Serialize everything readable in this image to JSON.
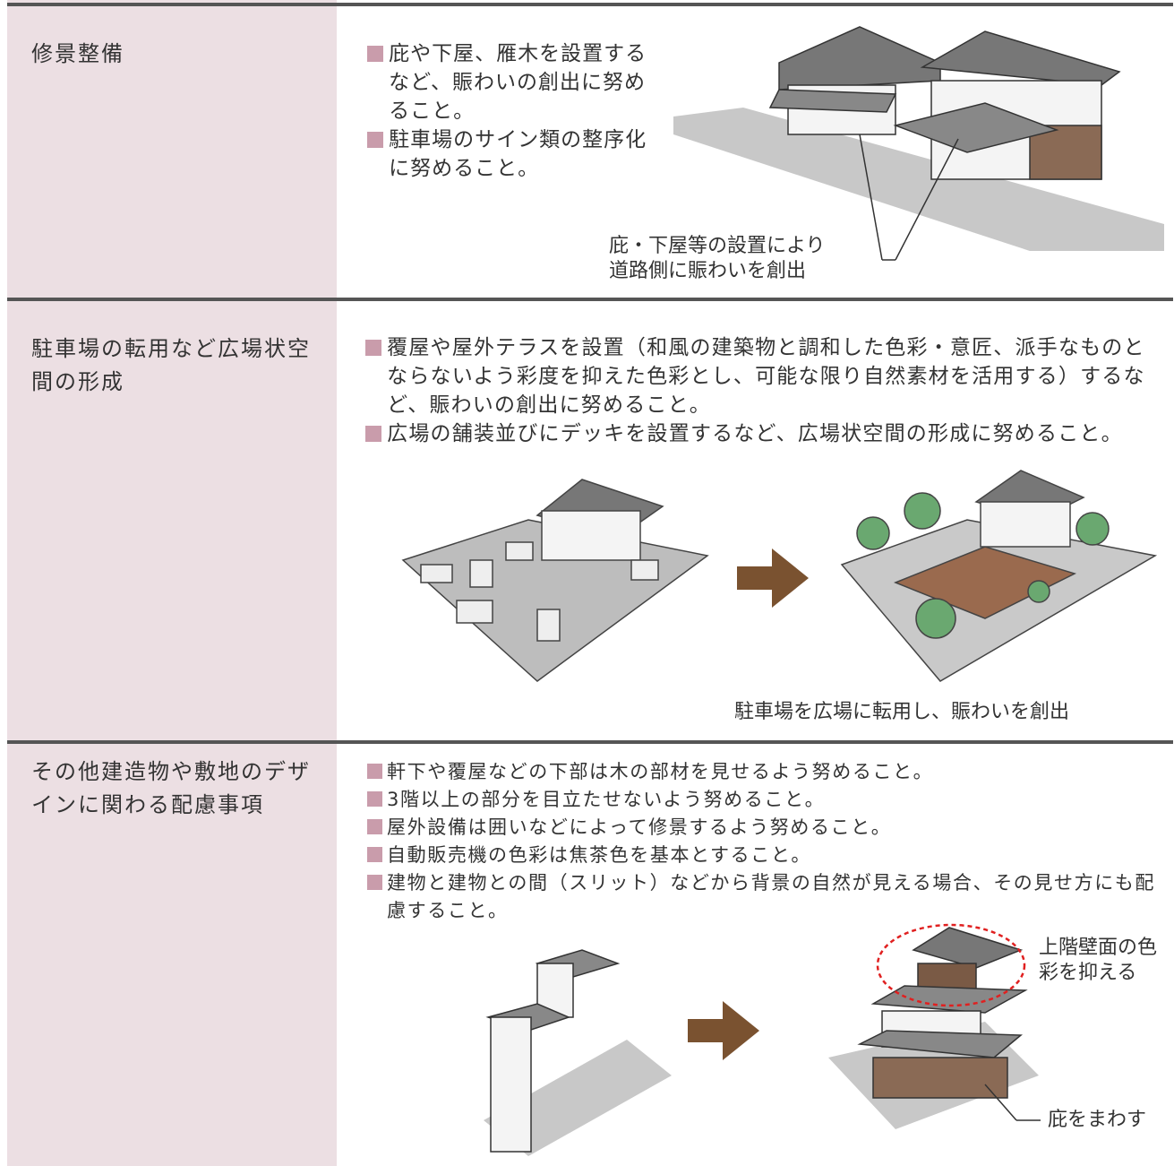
{
  "rows": [
    {
      "title": "修景整備",
      "items": [
        "庇や下屋、雁木を設置するなど、賑わいの創出に努めること。",
        "駐車場のサイン類の整序化に努めること。"
      ],
      "caption_lines": [
        "庇・下屋等の設置により",
        "道路側に賑わいを創出"
      ]
    },
    {
      "title": "駐車場の転用など広場状空間の形成",
      "items": [
        "覆屋や屋外テラスを設置（和風の建築物と調和した色彩・意匠、派手なものとならないよう彩度を抑えた色彩とし、可能な限り自然素材を活用する）するなど、賑わいの創出に努めること。",
        "広場の舗装並びにデッキを設置するなど、広場状空間の形成に努めること。"
      ],
      "caption": "駐車場を広場に転用し、賑わいを創出"
    },
    {
      "title": "その他建造物や敷地のデザインに関わる配慮事項",
      "items": [
        "軒下や覆屋などの下部は木の部材を見せるよう努めること。",
        "3階以上の部分を目立たせないよう努めること。",
        "屋外設備は囲いなどによって修景するよう努めること。",
        "自動販売機の色彩は焦茶色を基本とすること。",
        "建物と建物との間（スリット）などから背景の自然が見える場合、その見せ方にも配慮すること。"
      ],
      "label_upper_lines": [
        "上階壁面の色",
        "彩を抑える"
      ],
      "label_eaves": "庇をまわす"
    }
  ]
}
